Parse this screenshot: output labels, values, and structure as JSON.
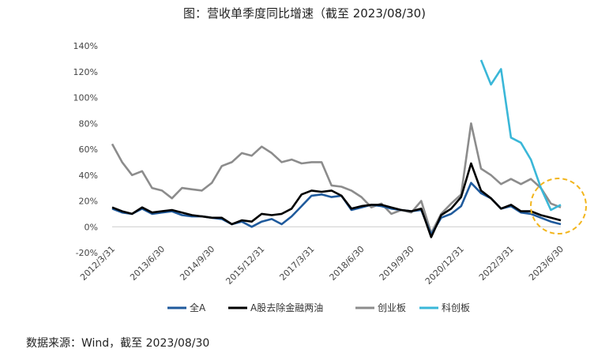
{
  "chart_data": {
    "type": "line",
    "title": "图：营收单季度同比增速（截至 2023/08/30)",
    "source": "数据来源：Wind，截至 2023/08/30",
    "y_ticks": [
      "140%",
      "120%",
      "100%",
      "80%",
      "60%",
      "40%",
      "20%",
      "0%",
      "-20%"
    ],
    "ylim": [
      -20,
      140
    ],
    "x_labels": [
      "2012/3/31",
      "2013/6/30",
      "2014/9/30",
      "2015/12/31",
      "2017/3/31",
      "2018/6/30",
      "2019/9/30",
      "2020/12/31",
      "2022/3/31",
      "2023/6/30"
    ],
    "x": [
      "2012/3/31",
      "2012/6/30",
      "2012/9/30",
      "2012/12/31",
      "2013/3/31",
      "2013/6/30",
      "2013/9/30",
      "2013/12/31",
      "2014/3/31",
      "2014/6/30",
      "2014/9/30",
      "2014/12/31",
      "2015/3/31",
      "2015/6/30",
      "2015/9/30",
      "2015/12/31",
      "2016/3/31",
      "2016/6/30",
      "2016/9/30",
      "2016/12/31",
      "2017/3/31",
      "2017/6/30",
      "2017/9/30",
      "2017/12/31",
      "2018/3/31",
      "2018/6/30",
      "2018/9/30",
      "2018/12/31",
      "2019/3/31",
      "2019/6/30",
      "2019/9/30",
      "2019/12/31",
      "2020/3/31",
      "2020/6/30",
      "2020/9/30",
      "2020/12/31",
      "2021/3/31",
      "2021/6/30",
      "2021/9/30",
      "2021/12/31",
      "2022/3/31",
      "2022/6/30",
      "2022/9/30",
      "2022/12/31",
      "2023/3/31",
      "2023/6/30"
    ],
    "series": [
      {
        "name": "全A",
        "color": "#1f5a9c",
        "values": [
          14,
          11,
          10,
          14,
          10,
          11,
          12,
          9,
          8,
          8,
          7,
          6,
          2,
          4,
          0,
          4,
          6,
          2,
          8,
          16,
          24,
          25,
          23,
          24,
          13,
          15,
          17,
          16,
          14,
          13,
          12,
          13,
          -6,
          7,
          10,
          16,
          34,
          26,
          22,
          14,
          16,
          11,
          10,
          7,
          4,
          2
        ]
      },
      {
        "name": "A股去除金融两油",
        "color": "#000000",
        "values": [
          15,
          12,
          10,
          15,
          11,
          12,
          13,
          11,
          9,
          8,
          7,
          7,
          2,
          5,
          4,
          10,
          9,
          10,
          14,
          25,
          28,
          27,
          28,
          24,
          14,
          16,
          17,
          17,
          15,
          13,
          12,
          14,
          -8,
          9,
          14,
          23,
          49,
          28,
          22,
          14,
          17,
          12,
          12,
          9,
          7,
          5
        ]
      },
      {
        "name": "创业板",
        "color": "#8c8c8c",
        "values": [
          64,
          50,
          40,
          43,
          30,
          28,
          22,
          30,
          29,
          28,
          34,
          47,
          50,
          57,
          55,
          62,
          57,
          50,
          52,
          49,
          50,
          50,
          32,
          31,
          28,
          23,
          15,
          18,
          10,
          13,
          11,
          20,
          -5,
          10,
          18,
          25,
          80,
          45,
          40,
          33,
          37,
          33,
          37,
          30,
          18,
          15
        ]
      },
      {
        "name": "科创板",
        "color": "#3ab7d8",
        "values": [
          null,
          null,
          null,
          null,
          null,
          null,
          null,
          null,
          null,
          null,
          null,
          null,
          null,
          null,
          null,
          null,
          null,
          null,
          null,
          null,
          null,
          null,
          null,
          null,
          null,
          null,
          null,
          null,
          null,
          null,
          null,
          null,
          null,
          null,
          null,
          null,
          null,
          129,
          110,
          122,
          69,
          65,
          52,
          30,
          13,
          17
        ]
      }
    ],
    "annotation": "dashed-circle",
    "legend": "bottom"
  }
}
